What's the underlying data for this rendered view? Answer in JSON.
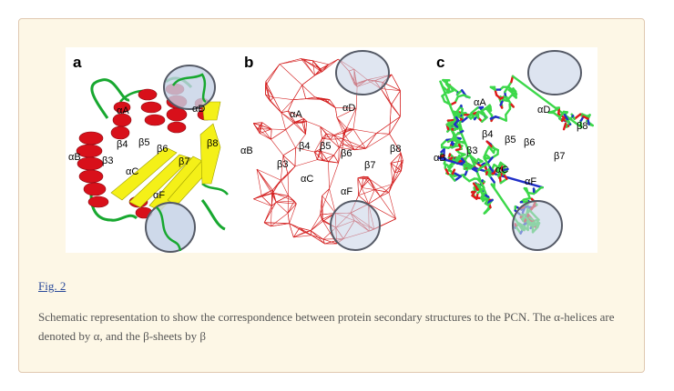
{
  "figure": {
    "panels": [
      {
        "label": "a",
        "style": "cartoon"
      },
      {
        "label": "b",
        "style": "network"
      },
      {
        "label": "c",
        "style": "sticks"
      }
    ],
    "structure_labels": {
      "a": [
        "αA",
        "αD",
        "αB",
        "β4",
        "β5",
        "β6",
        "β8",
        "β3",
        "αC",
        "β7",
        "αF"
      ],
      "b": [
        "αA",
        "αD",
        "αB",
        "β4",
        "β5",
        "β6",
        "β8",
        "β3",
        "β7",
        "αC",
        "αF"
      ],
      "c": [
        "αA",
        "αD",
        "β8",
        "β4",
        "β5",
        "β6",
        "αB",
        "β3",
        "β7",
        "αC",
        "αF"
      ]
    },
    "colors": {
      "helix": "#d8101a",
      "sheet": "#f4f018",
      "loop": "#18a830",
      "network": "#d42020",
      "stick_carbon": "#3cd84a",
      "stick_oxygen": "#e01818",
      "stick_nitrogen": "#2030c8",
      "highlight_fill": "#c6d2e6",
      "highlight_stroke": "#555a66"
    }
  },
  "link_text": "Fig. 2",
  "caption": "Schematic representation to show the correspondence between protein secondary structures to the PCN. The α-helices are denoted by α, and the β-sheets by β"
}
